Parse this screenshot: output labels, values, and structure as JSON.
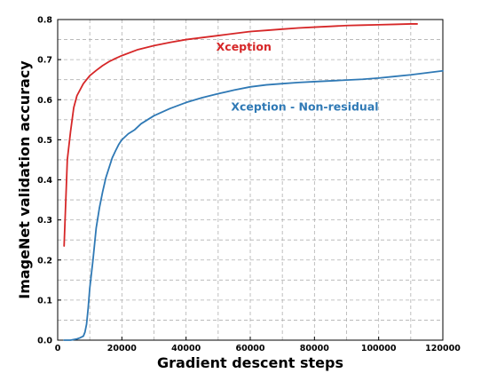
{
  "chart_data": {
    "type": "line",
    "title": "",
    "xlabel": "Gradient descent steps",
    "ylabel": "ImageNet validation accuracy",
    "xlim": [
      0,
      120000
    ],
    "ylim": [
      0.0,
      0.8
    ],
    "x_ticks": [
      0,
      20000,
      40000,
      60000,
      80000,
      100000,
      120000
    ],
    "x_tick_labels": [
      "0",
      "20000",
      "40000",
      "60000",
      "80000",
      "100000",
      "120000"
    ],
    "y_ticks": [
      0.0,
      0.1,
      0.2,
      0.3,
      0.4,
      0.5,
      0.6,
      0.7,
      0.8
    ],
    "y_tick_labels": [
      "0.0",
      "0.1",
      "0.2",
      "0.3",
      "0.4",
      "0.5",
      "0.6",
      "0.7",
      "0.8"
    ],
    "grid": true,
    "grid_style": "dashed",
    "legend": "inline labels",
    "series": [
      {
        "name": "Xception",
        "color": "#d62728",
        "x": [
          2000,
          3000,
          4000,
          5000,
          6000,
          7000,
          8000,
          9000,
          10000,
          12000,
          14000,
          16000,
          18000,
          20000,
          25000,
          30000,
          35000,
          40000,
          45000,
          50000,
          55000,
          60000,
          65000,
          70000,
          75000,
          80000,
          85000,
          90000,
          95000,
          100000,
          105000,
          110000,
          112000
        ],
        "y": [
          0.235,
          0.45,
          0.52,
          0.58,
          0.61,
          0.625,
          0.64,
          0.65,
          0.66,
          0.673,
          0.685,
          0.695,
          0.703,
          0.71,
          0.725,
          0.735,
          0.743,
          0.75,
          0.755,
          0.76,
          0.765,
          0.77,
          0.773,
          0.776,
          0.779,
          0.781,
          0.783,
          0.785,
          0.786,
          0.787,
          0.788,
          0.789,
          0.789
        ]
      },
      {
        "name": "Xception - Non-residual",
        "color": "#2f79b5",
        "x": [
          2000,
          4000,
          6000,
          7000,
          8000,
          8500,
          9000,
          9500,
          10000,
          11000,
          12000,
          13000,
          14000,
          15000,
          16000,
          17000,
          18000,
          19000,
          20000,
          22000,
          24000,
          26000,
          28000,
          30000,
          35000,
          40000,
          45000,
          50000,
          55000,
          60000,
          65000,
          70000,
          75000,
          80000,
          85000,
          90000,
          95000,
          100000,
          105000,
          110000,
          115000,
          120000
        ],
        "y": [
          0.0,
          0.0,
          0.003,
          0.006,
          0.01,
          0.02,
          0.04,
          0.08,
          0.13,
          0.2,
          0.28,
          0.33,
          0.37,
          0.405,
          0.43,
          0.455,
          0.472,
          0.488,
          0.5,
          0.515,
          0.525,
          0.54,
          0.55,
          0.56,
          0.578,
          0.593,
          0.605,
          0.615,
          0.624,
          0.632,
          0.637,
          0.64,
          0.643,
          0.645,
          0.647,
          0.649,
          0.651,
          0.654,
          0.658,
          0.662,
          0.667,
          0.672
        ]
      }
    ],
    "annotations": [
      {
        "text": "Xception",
        "x": 58000,
        "y": 0.722,
        "color": "#d62728"
      },
      {
        "text": "Xception - Non-residual",
        "x": 77000,
        "y": 0.573,
        "color": "#2f79b5"
      }
    ]
  }
}
